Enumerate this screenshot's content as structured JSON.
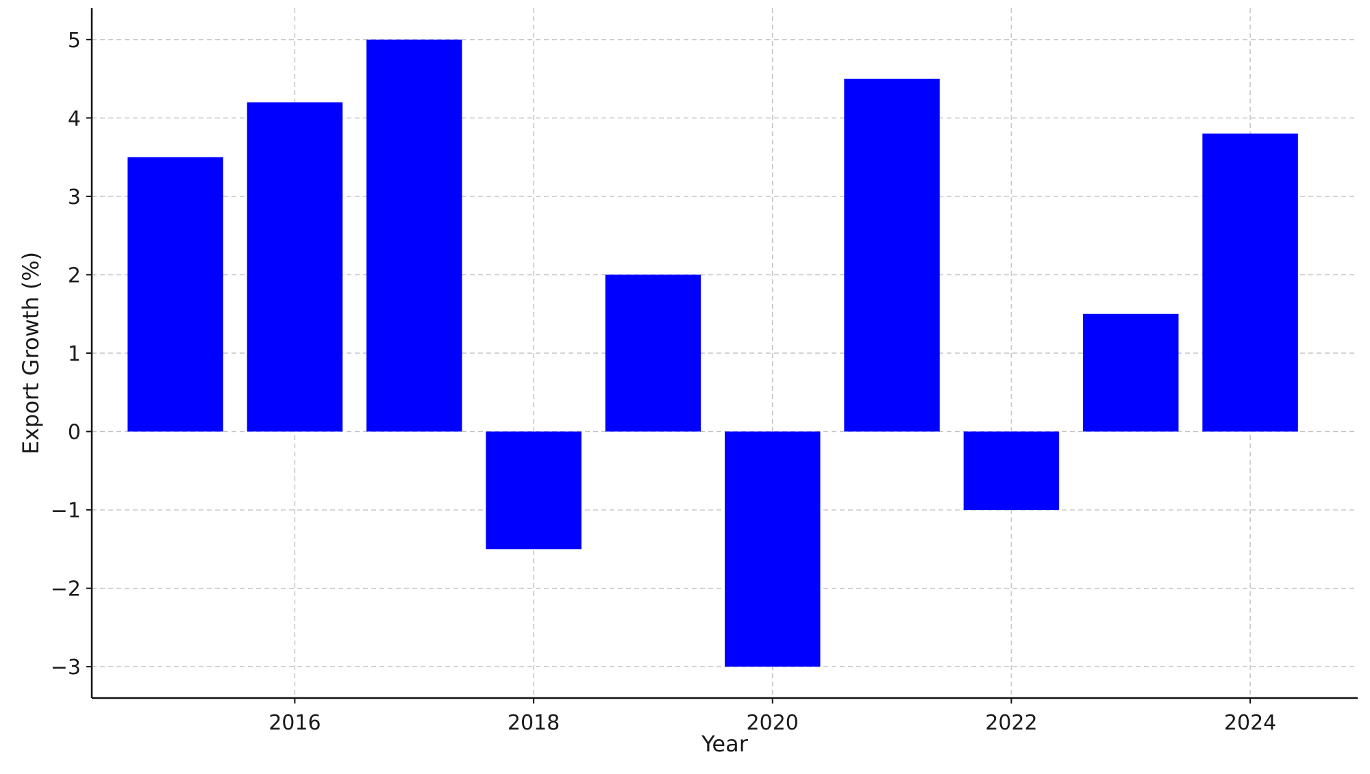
{
  "chart_data": {
    "type": "bar",
    "categories": [
      "2015",
      "2016",
      "2017",
      "2018",
      "2019",
      "2020",
      "2021",
      "2022",
      "2023",
      "2024"
    ],
    "x": [
      2015,
      2016,
      2017,
      2018,
      2019,
      2020,
      2021,
      2022,
      2023,
      2024
    ],
    "values": [
      3.5,
      4.2,
      5.0,
      -1.5,
      2.0,
      -3.0,
      4.5,
      -1.0,
      1.5,
      3.8
    ],
    "xlabel": "Year",
    "ylabel": "Export Growth (%)",
    "xticks": [
      "2016",
      "2018",
      "2020",
      "2022",
      "2024"
    ],
    "yticks": [
      "−3",
      "−2",
      "−1",
      "0",
      "1",
      "2",
      "3",
      "4",
      "5"
    ],
    "ylim": [
      -3.4,
      5.4
    ],
    "xlim": [
      2014.3,
      2024.9
    ],
    "grid": true,
    "bar_color": "#0000ff"
  }
}
